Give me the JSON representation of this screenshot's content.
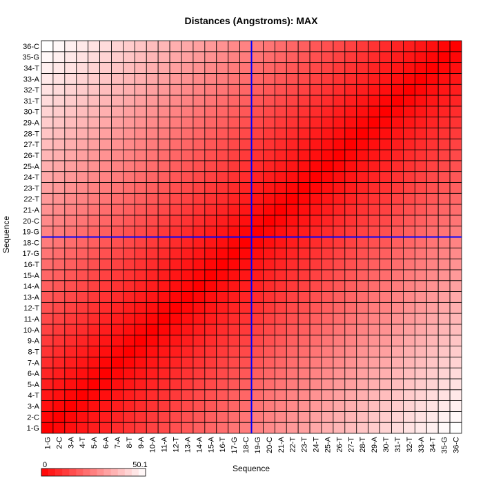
{
  "chart_data": {
    "type": "heatmap",
    "title": "Distances (Angstroms):  MAX",
    "xlabel": "Sequence",
    "ylabel": "Sequence",
    "categories": [
      "1-G",
      "2-C",
      "3-A",
      "4-T",
      "5-A",
      "6-A",
      "7-A",
      "8-T",
      "9-A",
      "10-A",
      "11-A",
      "12-T",
      "13-A",
      "14-A",
      "15-A",
      "16-T",
      "17-G",
      "18-C",
      "19-G",
      "20-C",
      "21-A",
      "22-T",
      "23-T",
      "24-T",
      "25-A",
      "26-T",
      "27-T",
      "28-T",
      "29-A",
      "30-T",
      "31-T",
      "32-T",
      "33-A",
      "34-T",
      "35-G",
      "36-C"
    ],
    "value_range": [
      0,
      50.1
    ],
    "colorbar": {
      "min_label": "0",
      "max_label": "50.1"
    },
    "value_rule": "distance between residues i and j grows with |i - j|; 0 on the diagonal, up to 50.1 at the far corners",
    "highlight": {
      "row": "18-C",
      "col": "18-C",
      "line_color": "#0000ff"
    },
    "colors": {
      "low": "#ff0000",
      "high": "#ffffff",
      "grid": "#000000"
    },
    "legend_position": "bottom-left",
    "grid": true
  }
}
